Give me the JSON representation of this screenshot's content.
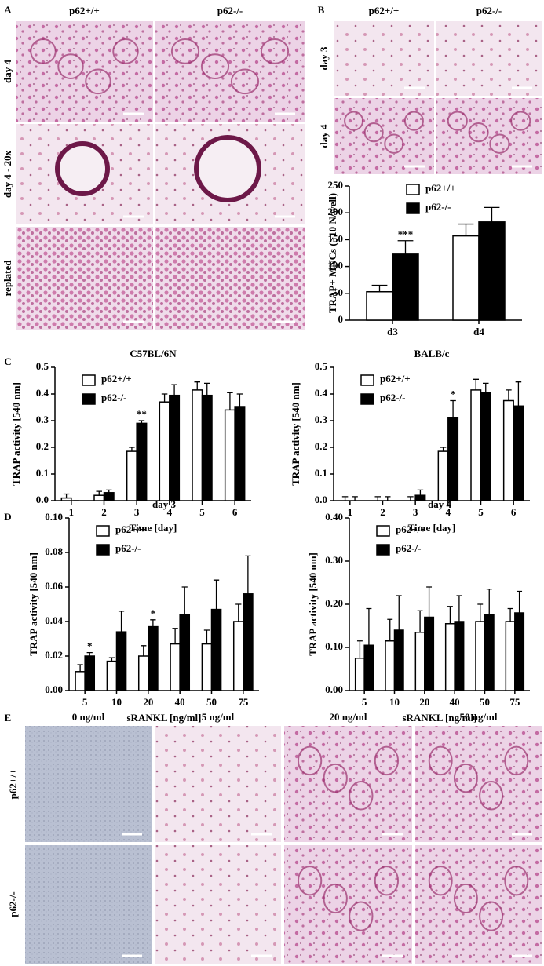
{
  "panels": {
    "A": {
      "label": "A",
      "columns": [
        "p62+/+",
        "p62-/-"
      ],
      "rows": [
        "day 4",
        "day 4 - 20x",
        "replated"
      ]
    },
    "B": {
      "label": "B",
      "columns": [
        "p62+/+",
        "p62-/-"
      ],
      "rows": [
        "day 3",
        "day 4"
      ]
    },
    "C": {
      "label": "C"
    },
    "D": {
      "label": "D"
    },
    "E": {
      "label": "E",
      "columns": [
        "0 ng/ml",
        "5 ng/ml",
        "20 ng/ml",
        "50 ng/ml"
      ],
      "rows": [
        "p62+/+",
        "p62-/-"
      ]
    }
  },
  "chart_data": [
    {
      "type": "bar",
      "categories": [
        "d3",
        "d4"
      ],
      "ylabel": "TRAP+ MNCs (>10 N/well)",
      "ylim": [
        0,
        250
      ],
      "yticks": [
        0,
        50,
        100,
        150,
        200,
        250
      ],
      "legend": "upper center",
      "series": [
        {
          "name": "p62+/+",
          "color": "#ffffff",
          "values": [
            53,
            157
          ],
          "errors": [
            12,
            22
          ],
          "annotations": [
            null,
            null
          ]
        },
        {
          "name": "p62-/-",
          "color": "#000000",
          "values": [
            123,
            183
          ],
          "errors": [
            25,
            27
          ],
          "annotations": [
            "***",
            null
          ]
        }
      ]
    },
    {
      "type": "bar",
      "title": "C57BL/6N",
      "categories": [
        "1",
        "2",
        "3",
        "4",
        "5",
        "6"
      ],
      "xlabel": "Time [day]",
      "ylabel": "TRAP activity [540 nm]",
      "ylim": [
        0,
        0.5
      ],
      "yticks": [
        {
          "value": 0,
          "label": "0.0"
        },
        0.1,
        0.2,
        0.3,
        0.4,
        0.5
      ],
      "legend": "upper left",
      "series": [
        {
          "name": "p62+/+",
          "color": "#ffffff",
          "values": [
            0.01,
            0.02,
            0.185,
            0.37,
            0.415,
            0.34
          ],
          "errors": [
            0.015,
            0.015,
            0.015,
            0.03,
            0.03,
            0.065
          ],
          "annotations": [
            null,
            null,
            null,
            null,
            null,
            null
          ]
        },
        {
          "name": "p62-/-",
          "color": "#000000",
          "values": [
            0,
            0.03,
            0.29,
            0.395,
            0.395,
            0.35
          ],
          "errors": [
            0,
            0.01,
            0.01,
            0.04,
            0.045,
            0.05
          ],
          "annotations": [
            null,
            null,
            "**",
            null,
            null,
            null
          ]
        }
      ]
    },
    {
      "type": "bar",
      "title": "BALB/c",
      "categories": [
        "1",
        "2",
        "3",
        "4",
        "5",
        "6"
      ],
      "xlabel": "Time [day]",
      "ylabel": "TRAP activity [540 nm]",
      "ylim": [
        0,
        0.5
      ],
      "yticks": [
        {
          "value": 0,
          "label": "0.0"
        },
        0.1,
        0.2,
        0.3,
        0.4,
        0.5
      ],
      "legend": "upper left",
      "series": [
        {
          "name": "p62+/+",
          "color": "#ffffff",
          "values": [
            0,
            0,
            0,
            0.185,
            0.415,
            0.375
          ],
          "errors": [
            0.015,
            0.015,
            0.015,
            0.015,
            0.04,
            0.04
          ],
          "annotations": [
            null,
            null,
            null,
            null,
            null,
            null
          ]
        },
        {
          "name": "p62-/-",
          "color": "#000000",
          "values": [
            0,
            0,
            0.02,
            0.31,
            0.405,
            0.355
          ],
          "errors": [
            0.015,
            0.015,
            0.02,
            0.065,
            0.035,
            0.09
          ],
          "annotations": [
            null,
            null,
            null,
            "*",
            null,
            null
          ]
        }
      ]
    },
    {
      "type": "bar",
      "title": "day 3",
      "categories": [
        "5",
        "10",
        "20",
        "40",
        "50",
        "75"
      ],
      "xlabel": "sRANKL [ng/ml]",
      "ylabel": "TRAP activity [540 nm]",
      "ylim": [
        0,
        0.1
      ],
      "yticks": [
        {
          "value": 0,
          "label": "0.00"
        },
        0.02,
        0.04,
        0.06,
        0.08,
        {
          "value": 0.1,
          "label": "0.10"
        }
      ],
      "legend": "upper left",
      "series": [
        {
          "name": "p62+/+",
          "color": "#ffffff",
          "values": [
            0.011,
            0.017,
            0.02,
            0.027,
            0.027,
            0.04
          ],
          "errors": [
            0.004,
            0.002,
            0.006,
            0.009,
            0.008,
            0.01
          ],
          "annotations": [
            null,
            null,
            null,
            null,
            null,
            null
          ]
        },
        {
          "name": "p62-/-",
          "color": "#000000",
          "values": [
            0.02,
            0.034,
            0.037,
            0.044,
            0.047,
            0.056
          ],
          "errors": [
            0.002,
            0.012,
            0.004,
            0.016,
            0.017,
            0.022
          ],
          "annotations": [
            "*",
            null,
            "*",
            null,
            null,
            null
          ]
        }
      ]
    },
    {
      "type": "bar",
      "title": "day 4",
      "categories": [
        "5",
        "10",
        "20",
        "40",
        "50",
        "75"
      ],
      "xlabel": "sRANKL [ng/ml]",
      "ylabel": "TRAP activity [540 nm]",
      "ylim": [
        0,
        0.4
      ],
      "yticks": [
        {
          "value": 0,
          "label": "0.00"
        },
        {
          "value": 0.1,
          "label": "0.10"
        },
        {
          "value": 0.2,
          "label": "0.20"
        },
        {
          "value": 0.3,
          "label": "0.30"
        },
        {
          "value": 0.4,
          "label": "0.40"
        }
      ],
      "legend": "upper left",
      "series": [
        {
          "name": "p62+/+",
          "color": "#ffffff",
          "values": [
            0.075,
            0.115,
            0.135,
            0.155,
            0.16,
            0.16
          ],
          "errors": [
            0.04,
            0.05,
            0.05,
            0.04,
            0.04,
            0.03
          ],
          "annotations": [
            null,
            null,
            null,
            null,
            null,
            null
          ]
        },
        {
          "name": "p62-/-",
          "color": "#000000",
          "values": [
            0.105,
            0.14,
            0.17,
            0.16,
            0.175,
            0.18
          ],
          "errors": [
            0.085,
            0.08,
            0.07,
            0.06,
            0.06,
            0.05
          ],
          "annotations": [
            null,
            null,
            null,
            null,
            null,
            null
          ]
        }
      ]
    }
  ]
}
